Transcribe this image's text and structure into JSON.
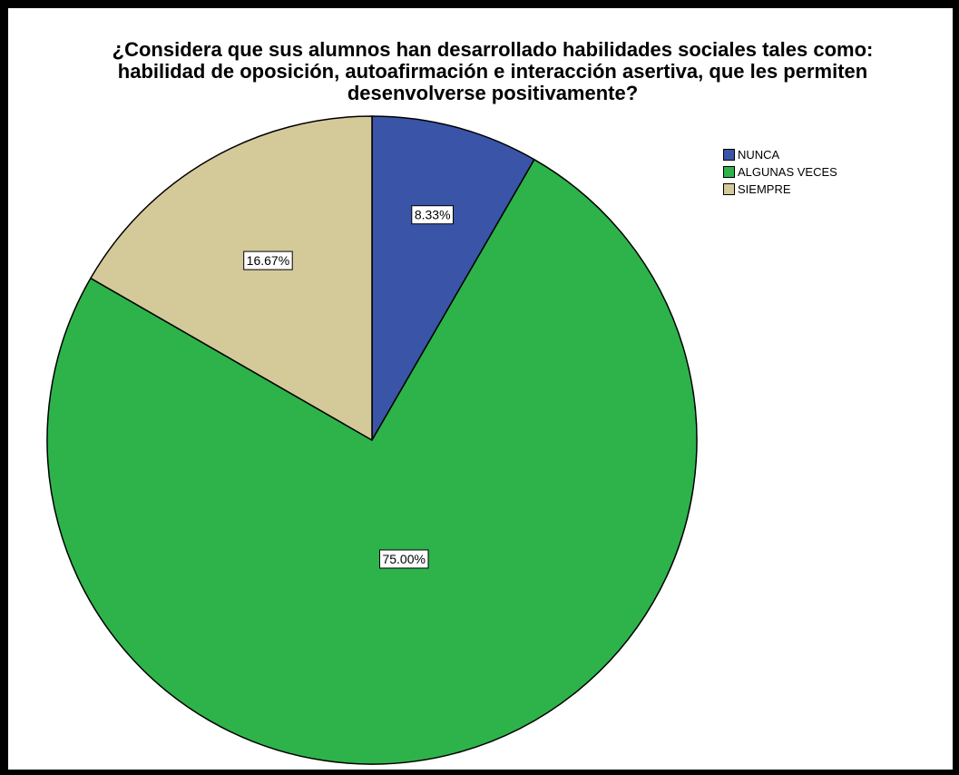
{
  "chart_data": {
    "type": "pie",
    "title_lines": [
      "¿Considera que sus alumnos han desarrollado habilidades sociales tales como:",
      "habilidad de oposición, autoafirmación e interacción asertiva, que les permiten",
      "desenvolverse positivamente?"
    ],
    "slices": [
      {
        "label": "NUNCA",
        "value": 8.33,
        "display": "8.33%",
        "color": "#3a54a8"
      },
      {
        "label": "ALGUNAS VECES",
        "value": 75.0,
        "display": "75.00%",
        "color": "#2db34a"
      },
      {
        "label": "SIEMPRE",
        "value": 16.67,
        "display": "16.67%",
        "color": "#d4c999"
      }
    ],
    "legend_position": "top-right"
  }
}
